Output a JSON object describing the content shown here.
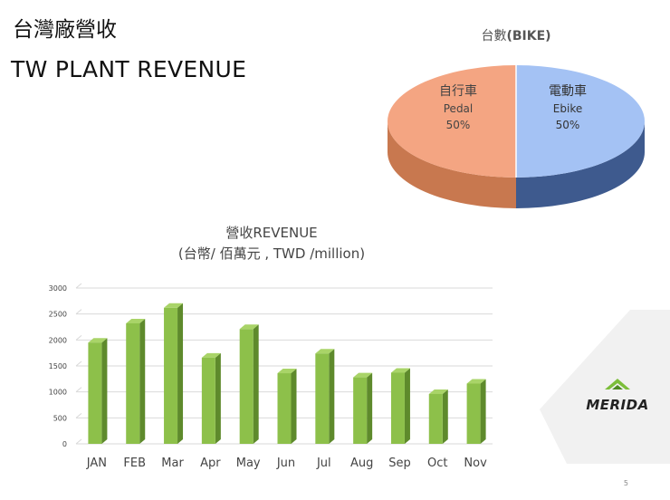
{
  "slide": {
    "title_zh": "台灣廠營收",
    "title_en": "TW PLANT  REVENUE",
    "slide_number": "5",
    "logo_text": "MERIDA"
  },
  "pie": {
    "title_prefix": "台數",
    "title_bold": "(BIKE)",
    "slices": [
      {
        "name_zh": "自行車",
        "name_en": "Pedal",
        "value": 50,
        "label": "50%",
        "color": "#F4A582"
      },
      {
        "name_zh": "電動車",
        "name_en": "Ebike",
        "value": 50,
        "label": "50%",
        "color": "#A4C2F4"
      }
    ]
  },
  "bar": {
    "title_line1": "營收REVENUE",
    "title_line2": "(台幣/ 佰萬元 , TWD /million)"
  },
  "colors": {
    "bar_front": "#8DC04A",
    "bar_side": "#5E8A2C",
    "bar_top": "#A9D468",
    "grid": "#d9d9d9",
    "axis_text": "#444444"
  },
  "chart_data": [
    {
      "type": "pie",
      "title": "台數(BIKE)",
      "categories": [
        "自行車 Pedal",
        "電動車 Ebike"
      ],
      "values": [
        50,
        50
      ],
      "data_labels": [
        "50%",
        "50%"
      ]
    },
    {
      "type": "bar",
      "title": "營收REVENUE (台幣/ 佰萬元 , TWD /million)",
      "categories": [
        "JAN",
        "FEB",
        "Mar",
        "Apr",
        "May",
        "Jun",
        "Jul",
        "Aug",
        "Sep",
        "Oct",
        "Nov"
      ],
      "values": [
        1950,
        2320,
        2620,
        1660,
        2210,
        1360,
        1740,
        1280,
        1370,
        960,
        1160
      ],
      "ylim": [
        0,
        3000
      ],
      "yticks": [
        0,
        500,
        1000,
        1500,
        2000,
        2500,
        3000
      ],
      "grid": true,
      "legend": "none"
    }
  ]
}
